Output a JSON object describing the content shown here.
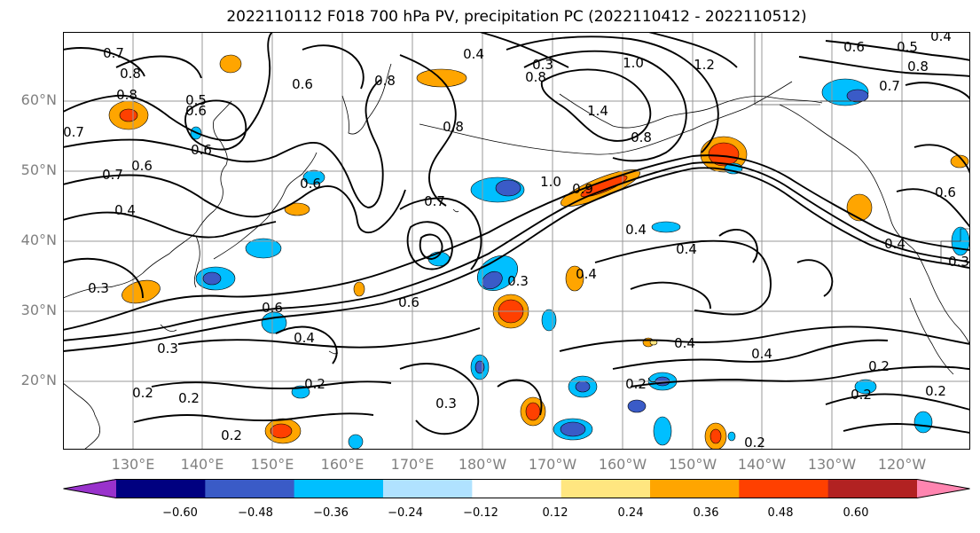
{
  "title": "2022110112 F018 700 hPa PV, precipitation PC (2022110412 - 2022110512)",
  "lat_labels": [
    "60°N",
    "50°N",
    "40°N",
    "30°N",
    "20°N"
  ],
  "lon_labels": [
    "130°E",
    "140°E",
    "150°E",
    "160°E",
    "170°E",
    "180°W",
    "170°W",
    "160°W",
    "150°W",
    "140°W",
    "130°W",
    "120°W"
  ],
  "colorbar": {
    "ticks": [
      "−0.60",
      "−0.48",
      "−0.36",
      "−0.24",
      "−0.12",
      "0.12",
      "0.24",
      "0.36",
      "0.48",
      "0.60"
    ],
    "colors": [
      "#9932CC",
      "#000080",
      "#3A5BC7",
      "#00BFFF",
      "#B0E2FF",
      "#FFFFFF",
      "#FFE680",
      "#FFA500",
      "#FF4000",
      "#B22222",
      "#FF85B0"
    ]
  },
  "contour_labels": [
    "0.7",
    "0.8",
    "0.6",
    "0.8",
    "0.5",
    "0.6",
    "0.8",
    "0.4",
    "0.3",
    "1.0",
    "1.2",
    "0.8",
    "1.4",
    "0.6",
    "0.5",
    "0.4",
    "0.7",
    "0.8",
    "0.7",
    "0.6",
    "0.7",
    "0.6",
    "0.4",
    "0.6",
    "1.0",
    "0.8",
    "0.7",
    "0.8",
    "0.9",
    "0.6",
    "0.4",
    "0.4",
    "0.4",
    "0.3",
    "0.3",
    "0.6",
    "0.6",
    "0.4",
    "0.3",
    "0.3",
    "0.4",
    "0.4",
    "0.2",
    "0.2",
    "0.2",
    "0.2",
    "0.2",
    "0.2",
    "0.4",
    "0.2",
    "0.2",
    "0.2",
    "0.3"
  ]
}
